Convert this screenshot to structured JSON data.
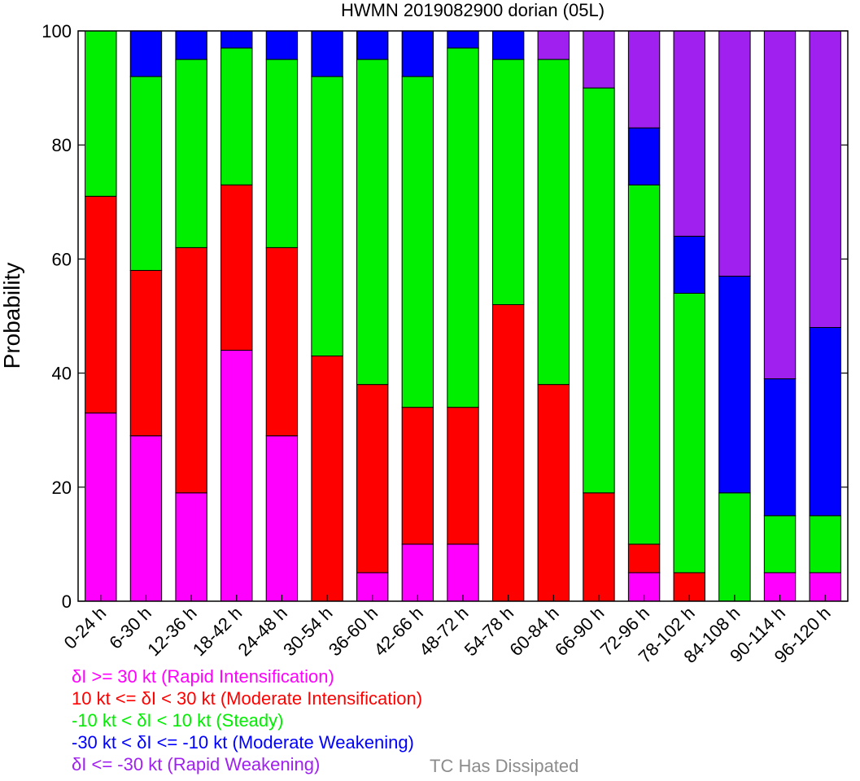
{
  "chart_data": {
    "type": "bar",
    "stacked": true,
    "title": "HWMN 2019082900 dorian (05L)",
    "xlabel": "",
    "ylabel": "Probability",
    "ylim": [
      0,
      100
    ],
    "yticks": [
      0,
      20,
      40,
      60,
      80,
      100
    ],
    "grid": false,
    "categories": [
      "0-24 h",
      "6-30 h",
      "12-36 h",
      "18-42 h",
      "24-48 h",
      "30-54 h",
      "36-60 h",
      "42-66 h",
      "48-72 h",
      "54-78 h",
      "60-84 h",
      "66-90 h",
      "72-96 h",
      "78-102 h",
      "84-108 h",
      "90-114 h",
      "96-120 h"
    ],
    "series": [
      {
        "name": "δI >= 30 kt (Rapid Intensification)",
        "color": "#ff00ff",
        "values": [
          33,
          29,
          19,
          44,
          29,
          0,
          5,
          10,
          10,
          0,
          0,
          0,
          5,
          0,
          0,
          5,
          5
        ]
      },
      {
        "name": "10 kt <= δI < 30 kt (Moderate Intensification)",
        "color": "#ff0000",
        "values": [
          38,
          29,
          43,
          29,
          33,
          43,
          33,
          24,
          24,
          52,
          38,
          19,
          5,
          5,
          0,
          0,
          0
        ]
      },
      {
        "name": "-10 kt < δI < 10 kt (Steady)",
        "color": "#00ee00",
        "values": [
          29,
          34,
          33,
          24,
          33,
          49,
          57,
          58,
          63,
          43,
          57,
          71,
          63,
          49,
          19,
          10,
          10
        ]
      },
      {
        "name": "-30 kt < δI <= -10 kt (Moderate Weakening)",
        "color": "#0000ff",
        "values": [
          0,
          8,
          5,
          3,
          5,
          8,
          5,
          8,
          3,
          5,
          0,
          0,
          10,
          10,
          38,
          24,
          33
        ]
      },
      {
        "name": "δI <= -30 kt (Rapid Weakening)",
        "color": "#a020f0",
        "values": [
          0,
          0,
          0,
          0,
          0,
          0,
          0,
          0,
          0,
          0,
          5,
          10,
          17,
          36,
          43,
          61,
          52
        ]
      }
    ],
    "legend": {
      "entries": [
        {
          "text": "δI >= 30 kt (Rapid Intensification)",
          "color": "#ff00ff"
        },
        {
          "text": "10 kt <= δI < 30 kt (Moderate Intensification)",
          "color": "#ff0000"
        },
        {
          "text": "-10 kt < δI < 10 kt (Steady)",
          "color": "#00ee00"
        },
        {
          "text": "-30 kt < δI <= -10 kt (Moderate Weakening)",
          "color": "#0000ff"
        },
        {
          "text": "δI <= -30 kt (Rapid Weakening)",
          "color": "#a020f0"
        }
      ],
      "extra": {
        "text": "TC Has Dissipated",
        "color": "#8c8c8c"
      },
      "placement": "bottom"
    }
  }
}
